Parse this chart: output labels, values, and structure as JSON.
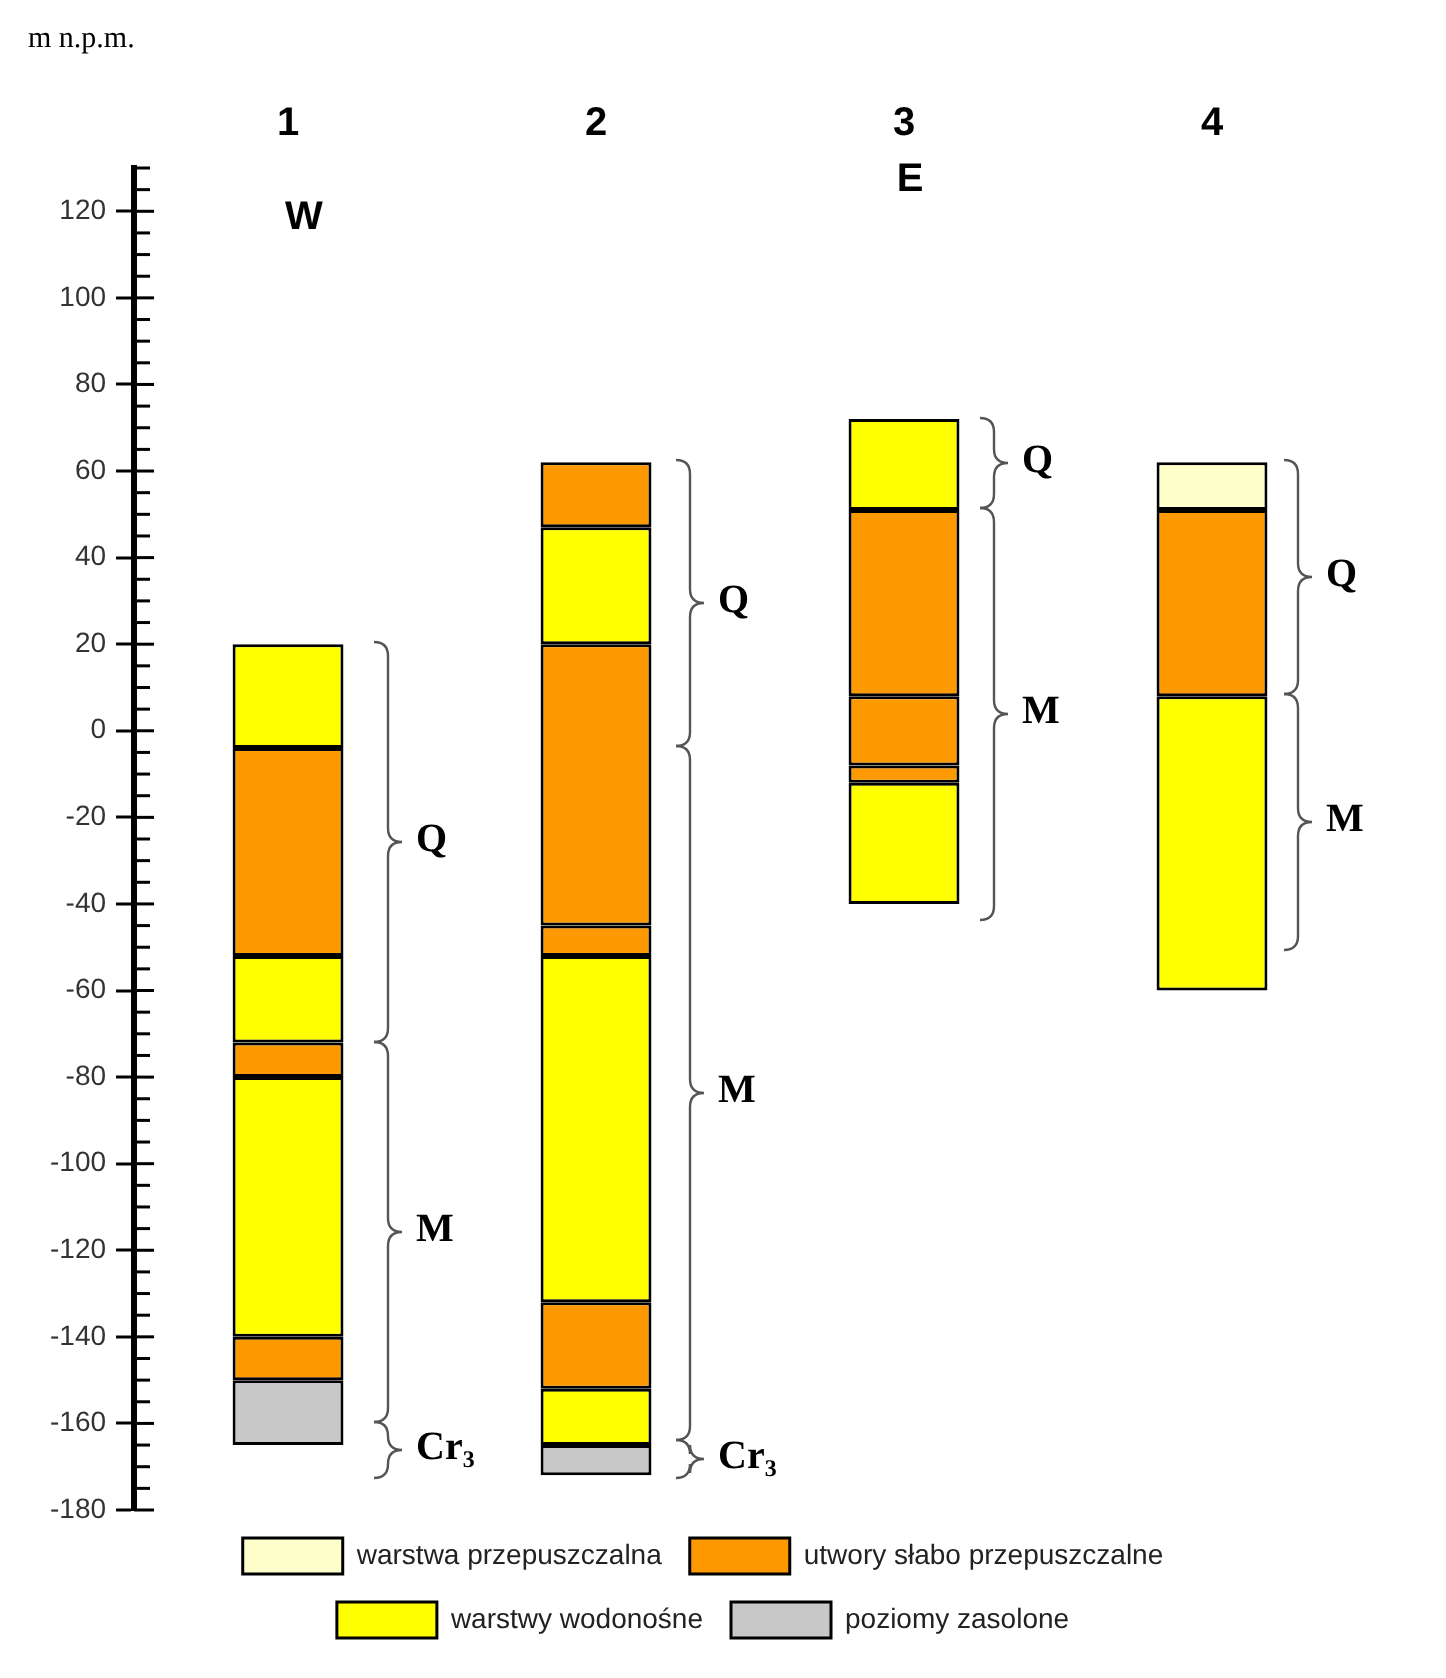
{
  "chart_data": {
    "type": "bar",
    "ylabel": "m n.p.m.",
    "categories": [
      "1",
      "2",
      "3",
      "4"
    ],
    "ylim": [
      -180,
      130
    ],
    "yticks": [
      -180,
      {
        "value": -175,
        "label": null
      },
      {
        "value": -170,
        "label": null
      },
      {
        "value": -165,
        "label": null
      },
      -160,
      {
        "value": -155,
        "label": null
      },
      {
        "value": -150,
        "label": null
      },
      {
        "value": -145,
        "label": null
      },
      -140,
      {
        "value": -135,
        "label": null
      },
      {
        "value": -130,
        "label": null
      },
      {
        "value": -125,
        "label": null
      },
      -120,
      {
        "value": -115,
        "label": null
      },
      {
        "value": -110,
        "label": null
      },
      {
        "value": -105,
        "label": null
      },
      -100,
      {
        "value": -95,
        "label": null
      },
      {
        "value": -90,
        "label": null
      },
      {
        "value": -85,
        "label": null
      },
      -80,
      {
        "value": -75,
        "label": null
      },
      {
        "value": -70,
        "label": null
      },
      {
        "value": -65,
        "label": null
      },
      -60,
      {
        "value": -55,
        "label": null
      },
      {
        "value": -50,
        "label": null
      },
      {
        "value": -45,
        "label": null
      },
      -40,
      {
        "value": -35,
        "label": null
      },
      {
        "value": -30,
        "label": null
      },
      {
        "value": -25,
        "label": null
      },
      -20,
      {
        "value": -15,
        "label": null
      },
      {
        "value": -10,
        "label": null
      },
      {
        "value": -5,
        "label": null
      },
      0,
      {
        "value": 5,
        "label": null
      },
      {
        "value": 10,
        "label": null
      },
      {
        "value": 15,
        "label": null
      },
      20,
      {
        "value": 25,
        "label": null
      },
      {
        "value": 30,
        "label": null
      },
      {
        "value": 35,
        "label": null
      },
      40,
      {
        "value": 45,
        "label": null
      },
      {
        "value": 50,
        "label": null
      },
      {
        "value": 55,
        "label": null
      },
      60,
      {
        "value": 65,
        "label": null
      },
      {
        "value": 70,
        "label": null
      },
      {
        "value": 75,
        "label": null
      },
      80,
      {
        "value": 85,
        "label": null
      },
      {
        "value": 90,
        "label": null
      },
      {
        "value": 95,
        "label": null
      },
      100,
      {
        "value": 105,
        "label": null
      },
      {
        "value": 110,
        "label": null
      },
      {
        "value": 115,
        "label": null
      },
      120,
      {
        "value": 125,
        "label": null
      },
      {
        "value": 130,
        "label": null
      }
    ],
    "legend": "bottom",
    "grid": false,
    "series": [
      {
        "name": "warstwa przepuszczalna",
        "color": "#ffffcc",
        "values": [
          null,
          null,
          null,
          11
        ],
        "base": [
          null,
          null,
          null,
          51
        ]
      },
      {
        "name": "utwory słabo przepuszczalne",
        "color": "#ff9900",
        "values": [
          null,
          null,
          null,
          43
        ],
        "base": [
          null,
          null,
          null,
          8
        ]
      },
      {
        "name": "warstwy wodonośne",
        "color": "#ffff00",
        "values": [
          null,
          null,
          null,
          68
        ],
        "base": [
          null,
          null,
          null,
          -60
        ]
      },
      {
        "name": "poziomy zasolone",
        "color": "#c8c8c8",
        "values": [
          15,
          null,
          null,
          null
        ],
        "base": [
          -165,
          null,
          null,
          null
        ]
      },
      {
        "color": "#ff9900",
        "values": [
          10,
          null,
          null,
          null
        ],
        "base": [
          -150,
          null,
          null,
          null
        ]
      },
      {
        "color": "#ffff00",
        "values": [
          60,
          null,
          null,
          null
        ],
        "base": [
          -140,
          null,
          null,
          null
        ]
      },
      {
        "color": "#ff9900",
        "values": [
          8,
          null,
          null,
          null
        ],
        "base": [
          -80,
          null,
          null,
          null
        ]
      },
      {
        "color": "#ffff00",
        "values": [
          20,
          null,
          null,
          null
        ],
        "base": [
          -72,
          null,
          null,
          null
        ]
      },
      {
        "color": "#ff9900",
        "values": [
          48,
          null,
          null,
          null
        ],
        "base": [
          -52,
          null,
          null,
          null
        ]
      },
      {
        "color": "#ffff00",
        "values": [
          24,
          null,
          null,
          null
        ],
        "base": [
          -4,
          null,
          null,
          null
        ]
      },
      {
        "color": "#c8c8c8",
        "values": [
          null,
          7,
          null,
          null
        ],
        "base": [
          null,
          -172,
          null,
          null
        ]
      },
      {
        "color": "#ffff00",
        "values": [
          null,
          13,
          null,
          null
        ],
        "base": [
          null,
          -165,
          null,
          null
        ]
      },
      {
        "color": "#ff9900",
        "values": [
          null,
          20,
          null,
          null
        ],
        "base": [
          null,
          -152,
          null,
          null
        ]
      },
      {
        "color": "#ffff00",
        "values": [
          null,
          80,
          null,
          null
        ],
        "base": [
          null,
          -132,
          null,
          null
        ]
      },
      {
        "color": "#ff9900",
        "values": [
          null,
          7,
          null,
          null
        ],
        "base": [
          null,
          -52,
          null,
          null
        ]
      },
      {
        "color": "#ff9900",
        "values": [
          null,
          65,
          null,
          null
        ],
        "base": [
          null,
          -45,
          null,
          null
        ]
      },
      {
        "color": "#ffff00",
        "values": [
          null,
          27,
          null,
          null
        ],
        "base": [
          null,
          20,
          null,
          null
        ]
      },
      {
        "color": "#ff9900",
        "values": [
          null,
          15,
          null,
          null
        ],
        "base": [
          null,
          47,
          null,
          null
        ]
      },
      {
        "color": "#ffff00",
        "values": [
          null,
          null,
          28,
          null
        ],
        "base": [
          null,
          null,
          -40,
          null
        ]
      },
      {
        "color": "#ff9900",
        "values": [
          null,
          null,
          4,
          null
        ],
        "base": [
          null,
          null,
          -12,
          null
        ]
      },
      {
        "color": "#ff9900",
        "values": [
          null,
          null,
          16,
          null
        ],
        "base": [
          null,
          null,
          -8,
          null
        ]
      },
      {
        "color": "#ff9900",
        "values": [
          null,
          null,
          43,
          null
        ],
        "base": [
          null,
          null,
          8,
          null
        ]
      },
      {
        "color": "#ffff00",
        "values": [
          null,
          null,
          21,
          null
        ],
        "base": [
          null,
          null,
          51,
          null
        ]
      }
    ],
    "annotations": [
      "Q",
      "M",
      "Cr₃",
      "Q",
      "M",
      "Cr₃",
      "Q",
      "M",
      "Q",
      "M",
      "W",
      "E"
    ]
  }
}
